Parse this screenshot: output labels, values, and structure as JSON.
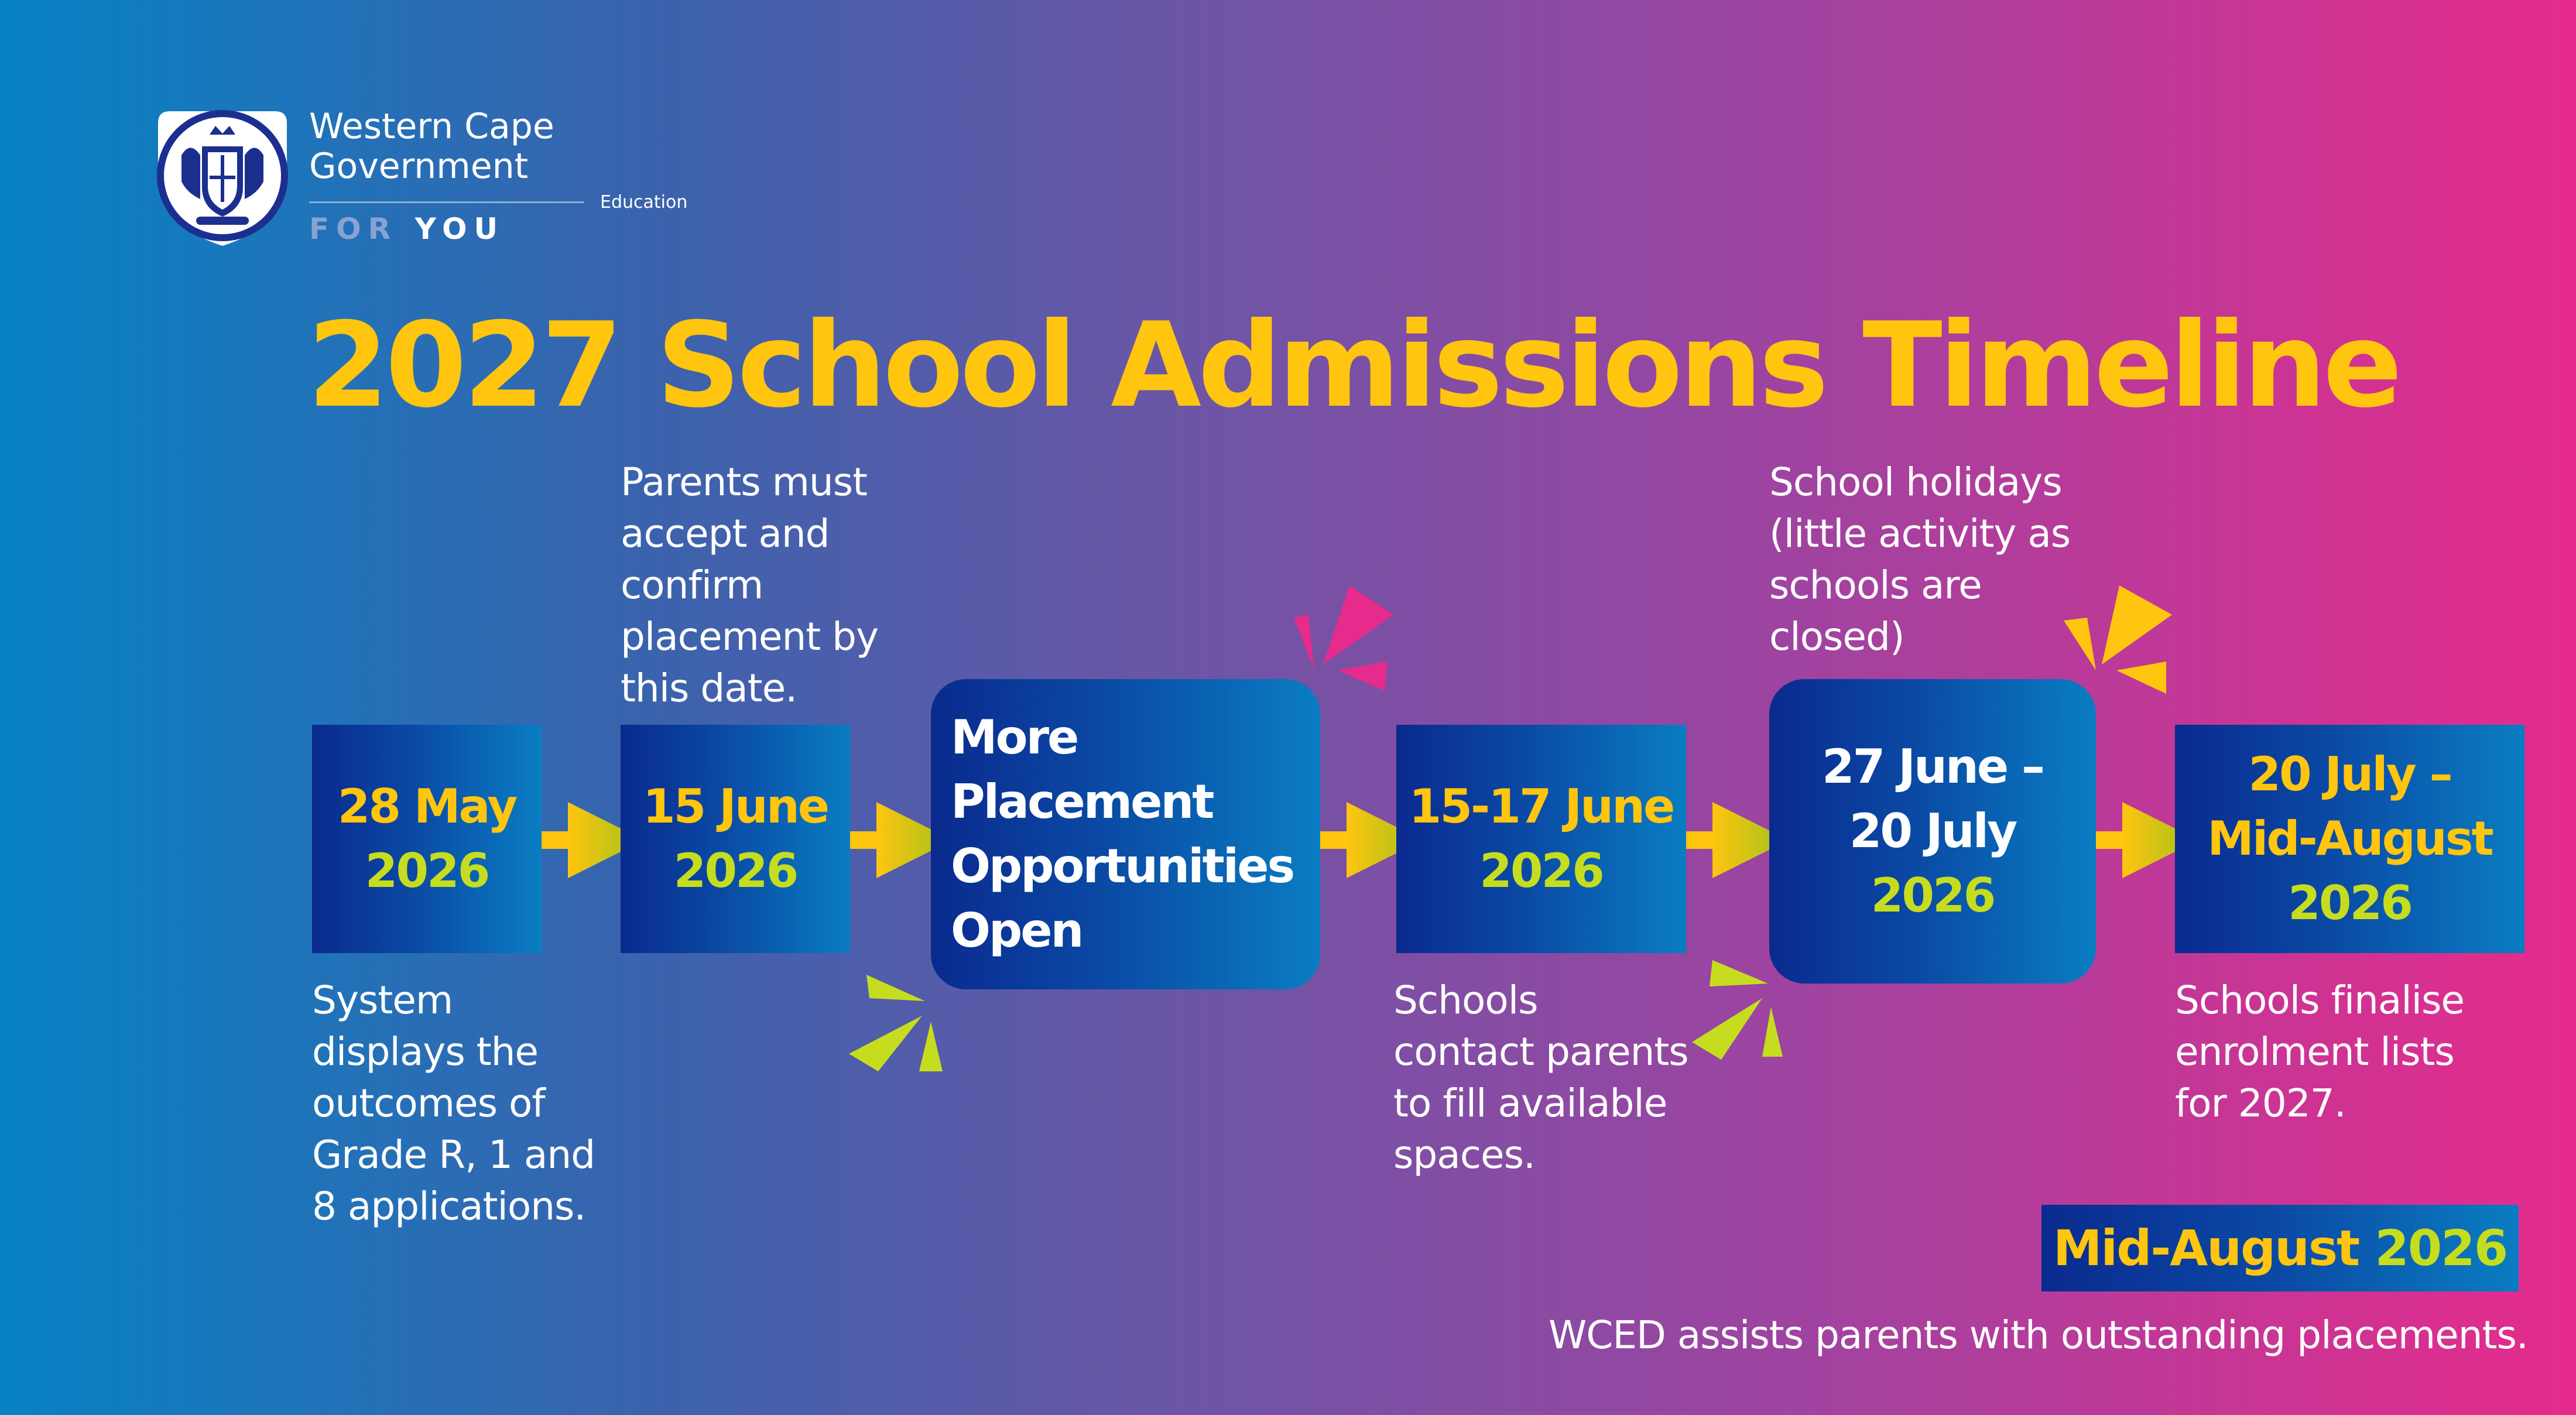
{
  "logo": {
    "name_line1": "Western Cape",
    "name_line2": "Government",
    "department": "Education",
    "tagline_part1": "FOR",
    "tagline_part2": "YOU"
  },
  "title": "2027 School Admissions Timeline",
  "steps": [
    {
      "line1": "28 May",
      "line2": "2026",
      "description": "System\ndisplays the\noutcomes of\nGrade R, 1 and\n8 applications."
    },
    {
      "line1": "15 June",
      "line2": "2026",
      "description": "Parents must\naccept and\nconfirm\nplacement by\nthis date."
    },
    {
      "line1": "More",
      "line2": "Placement",
      "line3": "Opportunities",
      "line4": "Open"
    },
    {
      "line1": "15-17 June",
      "line2": "2026",
      "description": "Schools\ncontact parents\nto fill available\nspaces."
    },
    {
      "line1": "27 June –",
      "line2": "20 July",
      "line3": "2026",
      "description_heading": "School holidays",
      "description": "(little activity as\nschools are\nclosed)"
    },
    {
      "line1": "20 July –",
      "line2": "Mid-August",
      "line3": "2026",
      "description": "Schools finalise\nenrolment lists\nfor 2027."
    }
  ],
  "final": {
    "date_part1": "Mid-August",
    "date_part2": "2026",
    "note": "WCED assists parents with outstanding placements."
  },
  "colors": {
    "title": "#ffc50f",
    "date_yellow": "#ffc50f",
    "date_green": "#c6dd1f",
    "box_dark": "#0a2a8e",
    "box_light": "#0a7dc2",
    "burst_pink": "#e52b8c",
    "burst_yellow": "#ffc50f",
    "burst_green": "#c6dd1f"
  }
}
